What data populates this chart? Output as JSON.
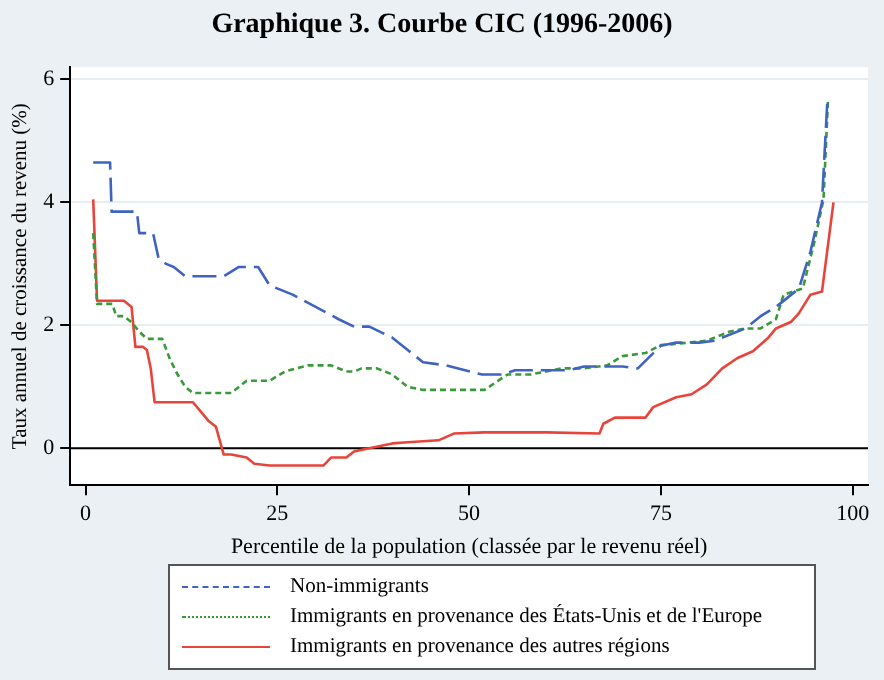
{
  "chart_data": {
    "type": "line",
    "title": "Graphique 3. Courbe CIC (1996-2006)",
    "xlabel": "Percentile de la population (classée par le revenu réel)",
    "ylabel": "Taux annuel de croissance du revenu (%)",
    "xlim": [
      -2,
      102
    ],
    "ylim": [
      -0.6,
      6.2
    ],
    "xticks": [
      0,
      25,
      50,
      75,
      100
    ],
    "yticks": [
      0,
      2,
      4,
      6
    ],
    "grid": "y",
    "legend": "bottom",
    "marker": "none",
    "ref_lines": [
      {
        "axis": "y",
        "value": 0,
        "color": "#000000"
      }
    ],
    "series": [
      {
        "name": "Non-immigrants",
        "color": "#3f63c0",
        "line_style": "dashed",
        "x": [
          1,
          3.2,
          3.4,
          6.7,
          7,
          8.8,
          9.5,
          10.5,
          11.5,
          13,
          18,
          20,
          22.5,
          24,
          27,
          30,
          33,
          35,
          37,
          40,
          42,
          44,
          47,
          51.7,
          54.3,
          56,
          63,
          65,
          70,
          72,
          75,
          77,
          80,
          82,
          86,
          88,
          90,
          93,
          94.5,
          96,
          96.7
        ],
        "values": [
          4.65,
          4.65,
          3.85,
          3.85,
          3.5,
          3.5,
          3.1,
          3.0,
          2.95,
          2.8,
          2.8,
          2.95,
          2.95,
          2.65,
          2.5,
          2.3,
          2.1,
          1.98,
          1.98,
          1.8,
          1.6,
          1.4,
          1.35,
          1.2,
          1.2,
          1.27,
          1.27,
          1.33,
          1.33,
          1.3,
          1.67,
          1.72,
          1.72,
          1.75,
          1.95,
          2.15,
          2.3,
          2.6,
          3.2,
          4.0,
          5.65
        ]
      },
      {
        "name": "Immigrants en provenance des États-Unis et de l'Europe",
        "color": "#3a9a3a",
        "line_style": "dotted",
        "x": [
          1,
          1.5,
          3.5,
          4,
          5,
          6,
          7,
          8,
          10,
          11,
          12,
          13,
          14,
          19,
          21,
          24,
          26,
          29,
          32,
          34,
          35,
          36,
          38,
          40,
          42,
          44,
          52,
          55,
          58,
          62,
          65,
          68,
          70,
          73,
          75,
          77,
          81,
          84,
          86,
          88,
          90,
          91,
          93.5,
          95,
          96.2,
          96.8
        ],
        "values": [
          3.5,
          2.35,
          2.35,
          2.15,
          2.15,
          2.05,
          1.9,
          1.78,
          1.78,
          1.45,
          1.2,
          1.0,
          0.9,
          0.9,
          1.1,
          1.1,
          1.25,
          1.35,
          1.35,
          1.25,
          1.25,
          1.3,
          1.3,
          1.2,
          1.0,
          0.95,
          0.95,
          1.2,
          1.2,
          1.3,
          1.3,
          1.35,
          1.5,
          1.55,
          1.68,
          1.7,
          1.75,
          1.9,
          1.95,
          1.95,
          2.1,
          2.5,
          2.6,
          3.35,
          4.05,
          5.7
        ]
      },
      {
        "name": "Immigrants en provenance des autres régions",
        "color": "#e8443a",
        "line_style": "solid",
        "x": [
          1,
          1.5,
          5,
          6,
          6.5,
          7.5,
          8,
          8.5,
          9,
          14,
          15,
          16,
          17,
          18,
          19,
          21,
          22,
          24,
          31,
          32,
          34,
          35,
          37,
          40,
          42,
          46,
          48,
          52,
          60,
          67,
          67.5,
          69,
          73,
          74,
          77,
          79,
          81,
          83,
          85,
          87,
          89,
          90,
          92,
          93,
          94.5,
          96,
          97.5
        ],
        "values": [
          4.05,
          2.4,
          2.4,
          2.3,
          1.65,
          1.65,
          1.6,
          1.3,
          0.75,
          0.75,
          0.6,
          0.45,
          0.35,
          -0.1,
          -0.1,
          -0.15,
          -0.25,
          -0.28,
          -0.28,
          -0.15,
          -0.15,
          -0.05,
          0.0,
          0.08,
          0.1,
          0.13,
          0.24,
          0.26,
          0.26,
          0.24,
          0.4,
          0.5,
          0.5,
          0.67,
          0.83,
          0.88,
          1.04,
          1.3,
          1.47,
          1.58,
          1.8,
          1.95,
          2.06,
          2.2,
          2.5,
          2.55,
          4.0
        ]
      }
    ]
  }
}
